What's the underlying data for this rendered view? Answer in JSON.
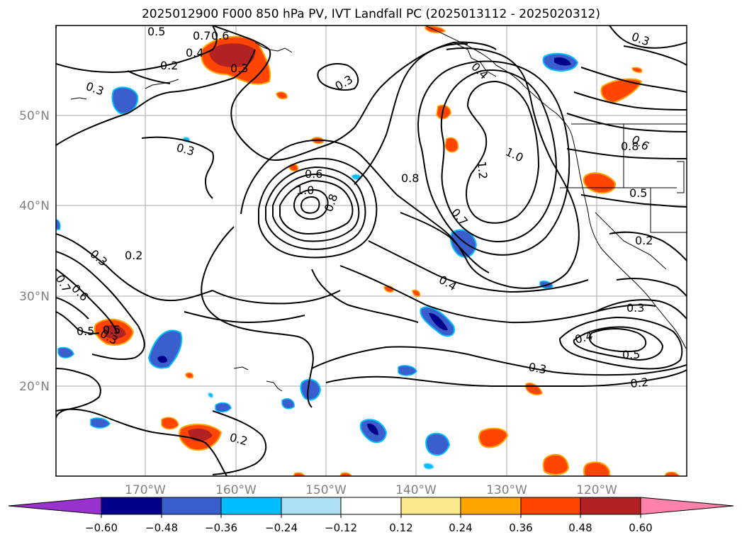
{
  "title": "2025012900 F000 850 hPa PV, IVT Landfall PC (2025013112 - 2025020312)",
  "map": {
    "lat_labels": [
      "50°N",
      "40°N",
      "30°N",
      "20°N"
    ],
    "lon_labels": [
      "170°W",
      "160°W",
      "150°W",
      "140°W",
      "130°W",
      "120°W"
    ],
    "contour_labels": [
      "0.5",
      "0.7",
      "0.6",
      "0.4",
      "0.2",
      "0.3",
      "0.3",
      "0.3",
      "0.3",
      "0.6",
      "1.0",
      "0.8",
      "0.8",
      "1.0",
      "1.2",
      "0.7",
      "0.4",
      "0.3",
      "0.2",
      "0.5",
      "0.6",
      "0.8",
      "0.5",
      "0.2",
      "0.3",
      "0.4",
      "0.5",
      "0.3",
      "0.2",
      "0.2",
      "0.3",
      "0.3",
      "0.7",
      "0.6",
      "0.5",
      "0.4"
    ]
  },
  "colorbar": {
    "tick_labels": [
      "−0.60",
      "−0.48",
      "−0.36",
      "−0.24",
      "−0.12",
      "0.12",
      "0.24",
      "0.36",
      "0.48",
      "0.60"
    ],
    "colors": [
      "#9932CC",
      "#00008B",
      "#3A5FCD",
      "#00BFFF",
      "#ADDFF5",
      "#FFFFFF",
      "#FBE88A",
      "#FFA500",
      "#FF4500",
      "#B22222",
      "#FF82AB"
    ]
  }
}
